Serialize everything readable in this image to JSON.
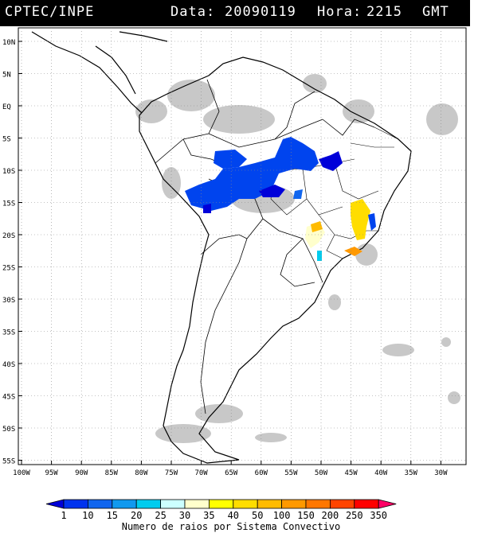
{
  "header": {
    "source": "CPTEC/INPE",
    "data_label": "Data:",
    "date": "20090119",
    "hora_label": "Hora:",
    "time": "2215",
    "tz": "GMT"
  },
  "map": {
    "lat_labels": [
      "10N",
      "5N",
      "EQ",
      "5S",
      "10S",
      "15S",
      "20S",
      "25S",
      "30S",
      "35S",
      "40S",
      "45S",
      "50S",
      "55S"
    ],
    "lon_labels": [
      "100W",
      "95W",
      "90W",
      "85W",
      "80W",
      "75W",
      "70W",
      "65W",
      "60W",
      "55W",
      "50W",
      "45W",
      "40W",
      "35W",
      "30W"
    ],
    "lat_range": [
      -56,
      12
    ],
    "lon_range": [
      -100,
      -28
    ],
    "grid": "dotted"
  },
  "colorbar": {
    "values": [
      "1",
      "10",
      "15",
      "20",
      "25",
      "30",
      "35",
      "40",
      "50",
      "100",
      "150",
      "200",
      "250",
      "350"
    ],
    "colors": [
      "#0000d9",
      "#0033ee",
      "#1166ee",
      "#1199ee",
      "#00ccee",
      "#ccffff",
      "#ffffcc",
      "#ffff00",
      "#ffdd00",
      "#ffbb00",
      "#ff9900",
      "#ff7700",
      "#ff4400",
      "#ff0000",
      "#ff0066"
    ],
    "caption": "Numero de raios por Sistema Convectivo"
  }
}
